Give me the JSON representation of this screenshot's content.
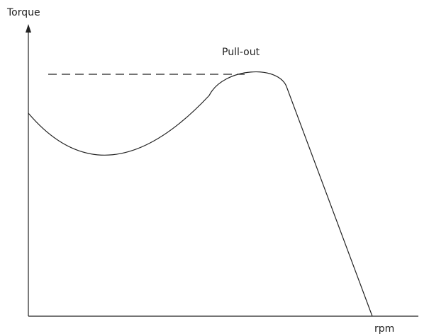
{
  "labels": {
    "y_axis": "Torque",
    "x_axis": "rpm",
    "peak": "Pull-out"
  }
}
